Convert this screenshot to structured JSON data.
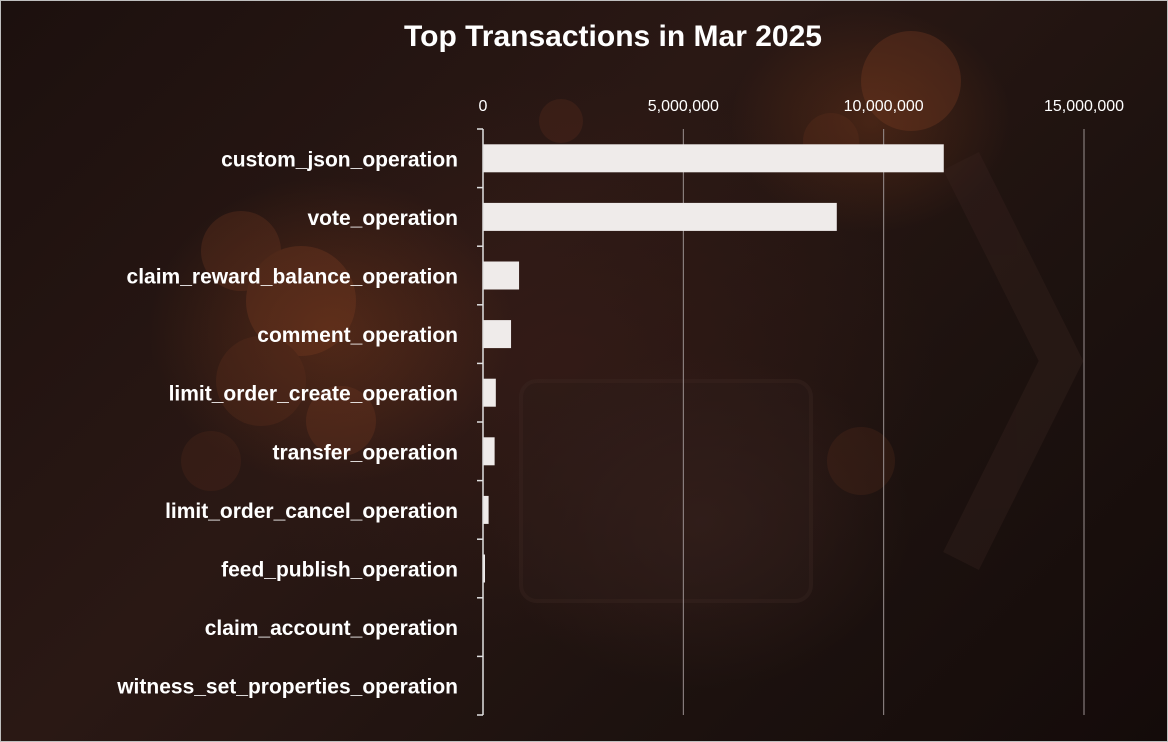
{
  "chart_data": {
    "type": "bar",
    "orientation": "horizontal",
    "title": "Top Transactions in Mar 2025",
    "xlabel": "",
    "ylabel": "",
    "xlim": [
      0,
      15000000
    ],
    "ticks": [
      0,
      5000000,
      10000000,
      15000000
    ],
    "tick_labels": [
      "0",
      "5,000,000",
      "10,000,000",
      "15,000,000"
    ],
    "grid": true,
    "categories": [
      "custom_json_operation",
      "vote_operation",
      "claim_reward_balance_operation",
      "comment_operation",
      "limit_order_create_operation",
      "transfer_operation",
      "limit_order_cancel_operation",
      "feed_publish_operation",
      "claim_account_operation",
      "witness_set_properties_operation"
    ],
    "values": [
      11500000,
      8830000,
      900000,
      700000,
      320000,
      290000,
      140000,
      50000,
      10000,
      5000
    ],
    "colors": {
      "bar": "#efebea",
      "text": "#ffffff",
      "grid": "#9a9090"
    }
  }
}
